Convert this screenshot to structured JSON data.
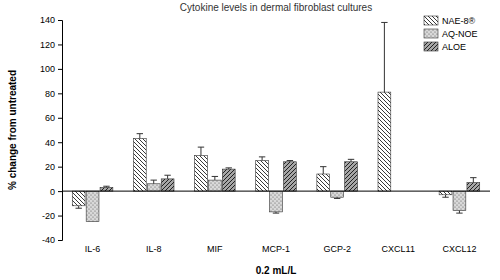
{
  "chart_data": {
    "type": "bar",
    "title": "Cytokine levels in dermal fibroblast cultures",
    "x_label": "0.2 mL/L",
    "y_label": "% change from untreated",
    "categories": [
      "IL-6",
      "IL-8",
      "MIF",
      "MCP-1",
      "GCP-2",
      "CXCL11",
      "CXCL12"
    ],
    "series": [
      {
        "name": "NAE-8®",
        "color": "#ffffff",
        "values": [
          -12,
          43,
          29,
          25,
          14,
          81,
          -3
        ],
        "errors": [
          2,
          4,
          7,
          3,
          6,
          57,
          2
        ]
      },
      {
        "name": "AQ-NOE",
        "color": "#d9d9d9",
        "values": [
          -25,
          6,
          9,
          -17,
          -5,
          null,
          -16
        ],
        "errors": [
          null,
          3,
          3,
          1,
          1,
          null,
          2
        ]
      },
      {
        "name": "ALOE",
        "color": "#a6a6a6",
        "values": [
          3,
          10,
          18,
          24,
          24,
          null,
          7
        ],
        "errors": [
          1,
          3,
          1,
          1,
          2,
          null,
          4
        ]
      }
    ],
    "ylim": [
      -40,
      140
    ],
    "yticks": [
      -40,
      -20,
      0,
      20,
      40,
      60,
      80,
      100,
      120,
      140
    ],
    "grid": false,
    "legend": "upper right"
  }
}
